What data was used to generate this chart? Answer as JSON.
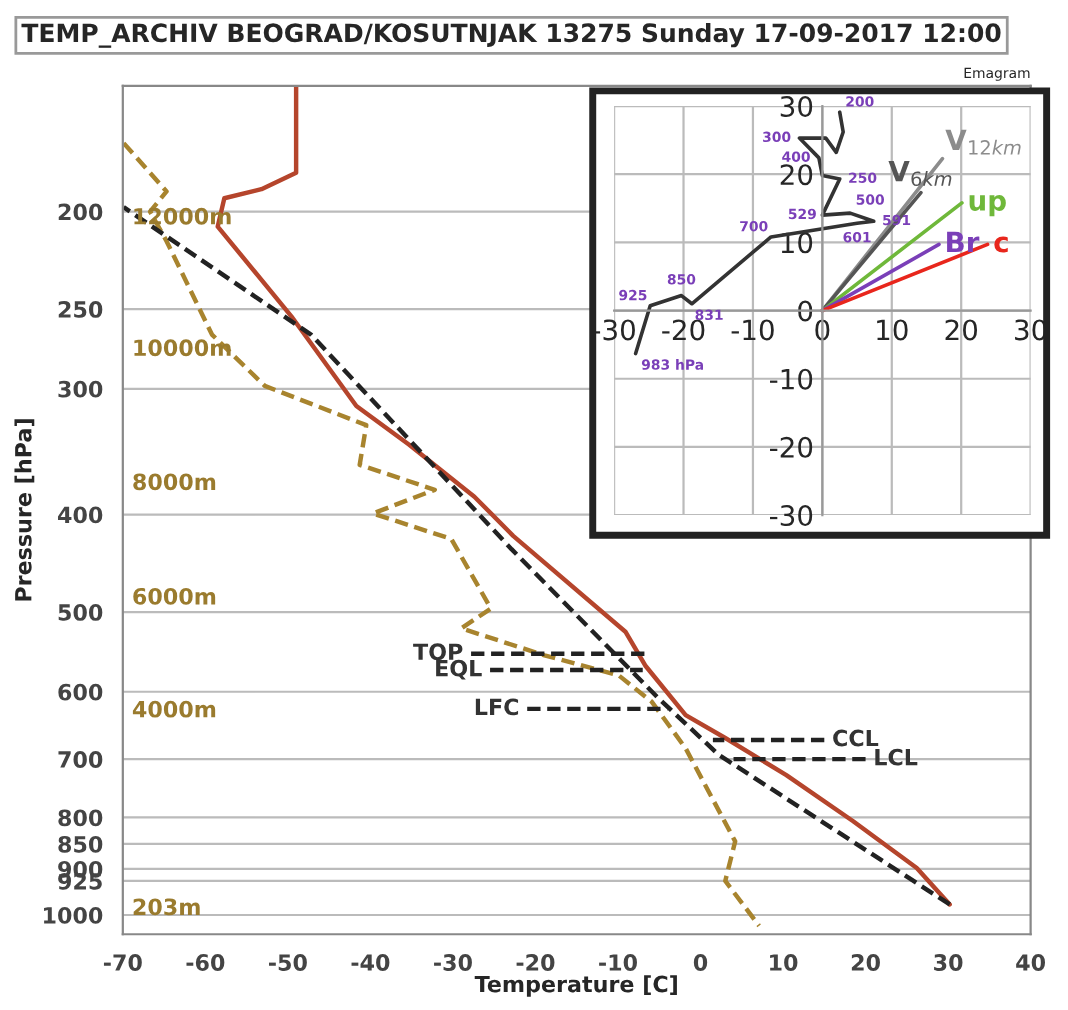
{
  "chart_data": [
    {
      "type": "line",
      "title": "TEMP_ARCHIV BEOGRAD/KOSUTNJAK 13275 Sunday 17-09-2017 12:00",
      "xlabel": "Temperature [C]",
      "ylabel": "Pressure [hPa]",
      "log": "y",
      "xlim": [
        -70,
        40
      ],
      "xticks": [
        -70,
        -60,
        -50,
        -40,
        -30,
        -20,
        -10,
        0,
        10,
        20,
        30,
        40
      ],
      "ylim": [
        1045,
        150
      ],
      "yticks": [
        200,
        250,
        300,
        400,
        500,
        600,
        700,
        800,
        850,
        900,
        925,
        1000
      ],
      "grid": "y",
      "legend": false,
      "series": [
        {
          "color": "#b5452c",
          "line_style": "solid",
          "x": [
            -49,
            -49,
            -53.2,
            -57.7,
            -58.5,
            -49.6,
            -41.7,
            -35.3,
            -27.4,
            -22.7,
            -9.1,
            -6.7,
            -1.8,
            3.0,
            10.4,
            18.5,
            26.2,
            30.2
          ],
          "values": [
            150,
            183,
            190,
            194,
            207,
            254,
            312,
            341,
            384,
            420,
            523,
            565,
            633,
            667,
            726,
            807,
            898,
            976
          ]
        },
        {
          "color": "#a8842e",
          "line_style": "dashed",
          "x": [
            -69.9,
            -64.7,
            -66.7,
            -64.7,
            -59.2,
            -52.8,
            -40.5,
            -41.3,
            -32.2,
            -39.7,
            -30.2,
            -25.4,
            -29.0,
            -18.9,
            -9.9,
            -5.9,
            -1.8,
            4.2,
            3.0,
            7.1
          ],
          "values": [
            171,
            191,
            200,
            214,
            265,
            298,
            326,
            357,
            378,
            399,
            423,
            496,
            519,
            552,
            578,
            614,
            683,
            845,
            925,
            1025
          ]
        },
        {
          "color": "#222222",
          "line_style": "dashed",
          "x": [
            30.2,
            2.2,
            -5.1,
            -22.9,
            -47.2,
            -69.9
          ],
          "values": [
            976,
            693,
            609,
            433,
            265,
            198
          ]
        },
        {
          "name": "TOP",
          "color": "#222222",
          "line_style": "dashed",
          "x": [
            -27.8,
            -6.5
          ],
          "values": [
            550,
            550
          ]
        },
        {
          "name": "EQL",
          "color": "#222222",
          "line_style": "dashed",
          "x": [
            -25.5,
            -7
          ],
          "values": [
            571,
            571
          ]
        },
        {
          "name": "LFC",
          "color": "#222222",
          "line_style": "dashed",
          "x": [
            -21,
            -4
          ],
          "values": [
            624,
            624
          ]
        },
        {
          "name": "CCL",
          "color": "#222222",
          "line_style": "dashed",
          "x": [
            15,
            1.5
          ],
          "values": [
            670,
            670
          ]
        },
        {
          "name": "LCL",
          "color": "#222222",
          "line_style": "dashed",
          "x": [
            20,
            4
          ],
          "values": [
            700,
            700
          ]
        }
      ],
      "annotations": [
        "12000m",
        "10000m",
        "8000m",
        "6000m",
        "4000m",
        "203m",
        "Emagram"
      ]
    },
    {
      "type": "line",
      "xlim": [
        -30,
        30
      ],
      "ylim": [
        -30,
        30
      ],
      "xticks": [
        -30,
        -20,
        -10,
        0,
        10,
        20,
        30
      ],
      "yticks": [
        -30,
        -20,
        -10,
        0,
        10,
        20,
        30
      ],
      "grid": true,
      "legend": false,
      "series": [
        {
          "color": "#333333",
          "line_style": "solid",
          "x": [
            -26.9,
            -24.8,
            -20.3,
            -18.8,
            -7.4,
            5.0,
            7.4,
            4.0,
            0,
            2.5,
            0,
            -0.5,
            -3.3,
            0.5,
            2.0,
            3.0,
            2.5
          ],
          "values": [
            -6.3,
            0.7,
            2.2,
            1.0,
            10.8,
            12.8,
            13.1,
            14.3,
            14.0,
            19.3,
            19.8,
            22.4,
            25.3,
            25.3,
            23.2,
            26.2,
            29.1
          ]
        },
        {
          "name": "V$_{12km}$",
          "color": "#8c8c8c",
          "line_style": "solid",
          "x": [
            0,
            17.3
          ],
          "values": [
            0,
            22.3
          ]
        },
        {
          "name": "V$_{6km}$",
          "color": "#555555",
          "line_style": "solid",
          "x": [
            0,
            14.2
          ],
          "values": [
            0,
            17.3
          ]
        },
        {
          "name": "up",
          "color": "#6fb83a",
          "line_style": "solid",
          "x": [
            0,
            20.1
          ],
          "values": [
            0,
            15.8
          ]
        },
        {
          "name": "Br",
          "color": "#7a3fb8",
          "line_style": "solid",
          "x": [
            0,
            16.8
          ],
          "values": [
            0,
            9.7
          ]
        },
        {
          "name": "c",
          "color": "#e8261c",
          "line_style": "solid",
          "x": [
            0,
            23.8
          ],
          "values": [
            0,
            9.7
          ]
        }
      ],
      "annotations": [
        {
          "text": "983 hPa",
          "x": -26.9,
          "y": -6.3
        },
        {
          "text": "925",
          "x": -24.8,
          "y": 0.7
        },
        {
          "text": "850",
          "x": -20.3,
          "y": 2.2
        },
        {
          "text": "831",
          "x": -18.8,
          "y": 1.0
        },
        {
          "text": "700",
          "x": -7.4,
          "y": 10.8
        },
        {
          "text": "601",
          "x": 5.0,
          "y": 12.8
        },
        {
          "text": "591",
          "x": 7.4,
          "y": 13.1
        },
        {
          "text": "500",
          "x": 4.0,
          "y": 14.3
        },
        {
          "text": "529",
          "x": 0,
          "y": 14.0
        },
        {
          "text": "250",
          "x": 2.5,
          "y": 19.3
        },
        {
          "text": "400",
          "x": -0.5,
          "y": 22.4
        },
        {
          "text": "300",
          "x": -3.3,
          "y": 25.3
        },
        {
          "text": "200",
          "x": 2.5,
          "y": 29.1
        }
      ]
    }
  ]
}
